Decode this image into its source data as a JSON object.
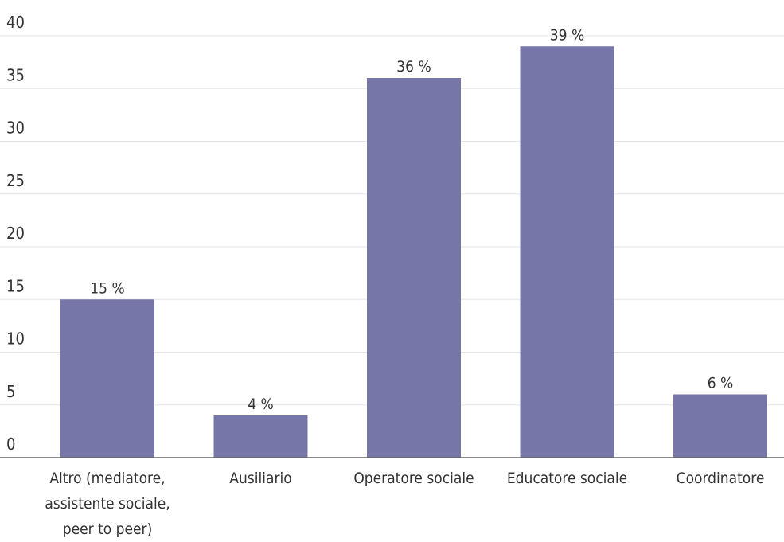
{
  "chart_data": {
    "type": "bar",
    "categories": [
      [
        "Altro (mediatore,",
        "assistente sociale,",
        "peer to peer)"
      ],
      [
        "Ausiliario"
      ],
      [
        "Operatore sociale"
      ],
      [
        "Educatore sociale"
      ],
      [
        "Coordinatore"
      ]
    ],
    "values": [
      15,
      4,
      36,
      39,
      6
    ],
    "data_labels": [
      "15 %",
      "4 %",
      "36 %",
      "39 %",
      "6 %"
    ],
    "ylim": [
      0,
      40
    ],
    "yticks": [
      0,
      5,
      10,
      15,
      20,
      25,
      30,
      35,
      40
    ],
    "grid": true,
    "legend": "none",
    "bar_color": "#7776a9"
  }
}
